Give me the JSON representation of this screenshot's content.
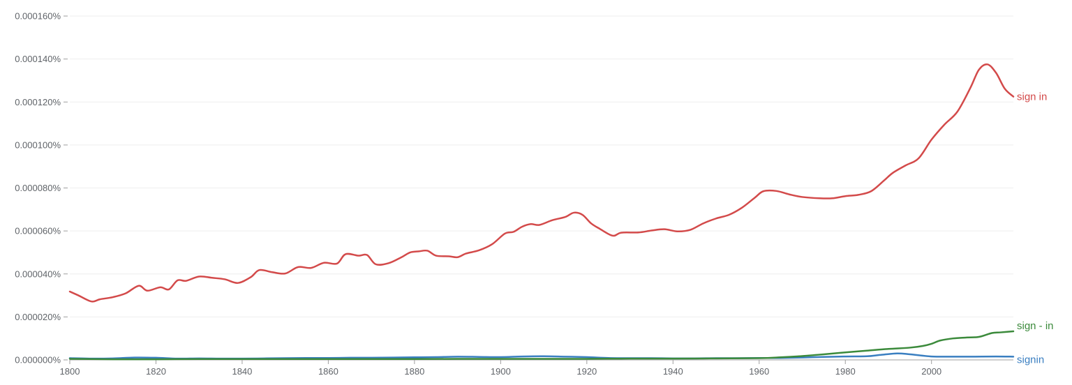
{
  "chart_data": {
    "type": "line",
    "title": "",
    "xlabel": "",
    "ylabel": "",
    "xlim": [
      1800,
      2019
    ],
    "ylim": [
      0,
      0.00016
    ],
    "grid": true,
    "legend": "inline labels at right end of each line",
    "y_ticks": [
      {
        "value": 0,
        "label": "0.000000%"
      },
      {
        "value": 2e-05,
        "label": "0.000020%"
      },
      {
        "value": 4e-05,
        "label": "0.000040%"
      },
      {
        "value": 6e-05,
        "label": "0.000060%"
      },
      {
        "value": 8e-05,
        "label": "0.000080%"
      },
      {
        "value": 0.0001,
        "label": "0.000100%"
      },
      {
        "value": 0.00012,
        "label": "0.000120%"
      },
      {
        "value": 0.00014,
        "label": "0.000140%"
      },
      {
        "value": 0.00016,
        "label": "0.000160%"
      }
    ],
    "x_ticks": [
      {
        "value": 1800,
        "label": "1800"
      },
      {
        "value": 1820,
        "label": "1820"
      },
      {
        "value": 1840,
        "label": "1840"
      },
      {
        "value": 1860,
        "label": "1860"
      },
      {
        "value": 1880,
        "label": "1880"
      },
      {
        "value": 1900,
        "label": "1900"
      },
      {
        "value": 1920,
        "label": "1920"
      },
      {
        "value": 1940,
        "label": "1940"
      },
      {
        "value": 1960,
        "label": "1960"
      },
      {
        "value": 1980,
        "label": "1980"
      },
      {
        "value": 2000,
        "label": "2000"
      }
    ],
    "series": [
      {
        "name": "sign in",
        "color": "#d34a4a",
        "x": [
          1800,
          1802,
          1805,
          1807,
          1810,
          1813,
          1816,
          1818,
          1821,
          1823,
          1825,
          1827,
          1830,
          1833,
          1836,
          1839,
          1842,
          1844,
          1847,
          1850,
          1853,
          1856,
          1859,
          1862,
          1864,
          1867,
          1869,
          1871,
          1874,
          1877,
          1879,
          1881,
          1883,
          1885,
          1888,
          1890,
          1892,
          1895,
          1898,
          1901,
          1903,
          1905,
          1907,
          1909,
          1912,
          1915,
          1917,
          1919,
          1921,
          1923,
          1926,
          1928,
          1932,
          1935,
          1938,
          1941,
          1944,
          1947,
          1950,
          1953,
          1956,
          1959,
          1961,
          1964,
          1967,
          1970,
          1974,
          1977,
          1980,
          1983,
          1986,
          1989,
          1991,
          1994,
          1997,
          2000,
          2003,
          2006,
          2009,
          2011,
          2013,
          2015,
          2017,
          2019
        ],
        "y": [
          3.18e-05,
          3e-05,
          2.72e-05,
          2.82e-05,
          2.92e-05,
          3.1e-05,
          3.45e-05,
          3.22e-05,
          3.38e-05,
          3.28e-05,
          3.7e-05,
          3.68e-05,
          3.88e-05,
          3.82e-05,
          3.75e-05,
          3.58e-05,
          3.85e-05,
          4.18e-05,
          4.08e-05,
          4.02e-05,
          4.32e-05,
          4.28e-05,
          4.52e-05,
          4.48e-05,
          4.92e-05,
          4.85e-05,
          4.88e-05,
          4.45e-05,
          4.5e-05,
          4.78e-05,
          5e-05,
          5.05e-05,
          5.08e-05,
          4.85e-05,
          4.82e-05,
          4.78e-05,
          4.95e-05,
          5.1e-05,
          5.38e-05,
          5.88e-05,
          5.96e-05,
          6.2e-05,
          6.32e-05,
          6.28e-05,
          6.5e-05,
          6.65e-05,
          6.85e-05,
          6.75e-05,
          6.35e-05,
          6.1e-05,
          5.78e-05,
          5.92e-05,
          5.93e-05,
          6.02e-05,
          6.08e-05,
          5.98e-05,
          6.05e-05,
          6.35e-05,
          6.58e-05,
          6.75e-05,
          7.08e-05,
          7.55e-05,
          7.85e-05,
          7.86e-05,
          7.7e-05,
          7.58e-05,
          7.52e-05,
          7.52e-05,
          7.62e-05,
          7.68e-05,
          7.85e-05,
          8.35e-05,
          8.7e-05,
          9.05e-05,
          9.38e-05,
          0.0001025,
          0.0001095,
          0.0001155,
          0.0001265,
          0.000135,
          0.0001375,
          0.0001335,
          0.0001262,
          0.0001225
        ]
      },
      {
        "name": "sign - in",
        "color": "#3b8a3b",
        "x": [
          1800,
          1810,
          1820,
          1830,
          1840,
          1850,
          1860,
          1870,
          1880,
          1890,
          1900,
          1910,
          1920,
          1930,
          1940,
          1950,
          1960,
          1965,
          1970,
          1975,
          1980,
          1985,
          1990,
          1995,
          1998,
          2000,
          2002,
          2005,
          2008,
          2011,
          2014,
          2016,
          2019
        ],
        "y": [
          5e-07,
          3e-07,
          3e-07,
          4e-07,
          4e-07,
          4e-07,
          4e-07,
          4e-07,
          4e-07,
          5e-07,
          5e-07,
          5e-07,
          5e-07,
          6e-07,
          6e-07,
          7e-07,
          8e-07,
          1.2e-06,
          1.8e-06,
          2.6e-06,
          3.5e-06,
          4.3e-06,
          5.1e-06,
          5.7e-06,
          6.5e-06,
          7.5e-06,
          9e-06,
          1e-05,
          1.04e-05,
          1.07e-05,
          1.25e-05,
          1.28e-05,
          1.33e-05
        ]
      },
      {
        "name": "signin",
        "color": "#3a7fc1",
        "x": [
          1800,
          1805,
          1810,
          1815,
          1820,
          1825,
          1830,
          1835,
          1840,
          1845,
          1850,
          1855,
          1860,
          1865,
          1870,
          1875,
          1880,
          1885,
          1890,
          1895,
          1900,
          1905,
          1910,
          1915,
          1920,
          1925,
          1930,
          1935,
          1940,
          1945,
          1950,
          1955,
          1960,
          1965,
          1970,
          1975,
          1980,
          1985,
          1988,
          1992,
          1995,
          2000,
          2005,
          2010,
          2015,
          2019
        ],
        "y": [
          8e-07,
          6e-07,
          7e-07,
          1.1e-06,
          1e-06,
          6e-07,
          7e-07,
          6e-07,
          6e-07,
          7e-07,
          8e-07,
          9e-07,
          9e-07,
          1e-06,
          1e-06,
          1.1e-06,
          1.2e-06,
          1.3e-06,
          1.5e-06,
          1.4e-06,
          1.3e-06,
          1.6e-06,
          1.7e-06,
          1.5e-06,
          1.3e-06,
          9e-07,
          8e-07,
          8e-07,
          7e-07,
          7e-07,
          8e-07,
          8e-07,
          9e-07,
          9e-07,
          1.1e-06,
          1.4e-06,
          1.6e-06,
          1.7e-06,
          2.3e-06,
          3e-06,
          2.6e-06,
          1.6e-06,
          1.5e-06,
          1.5e-06,
          1.6e-06,
          1.5e-06
        ]
      }
    ]
  }
}
